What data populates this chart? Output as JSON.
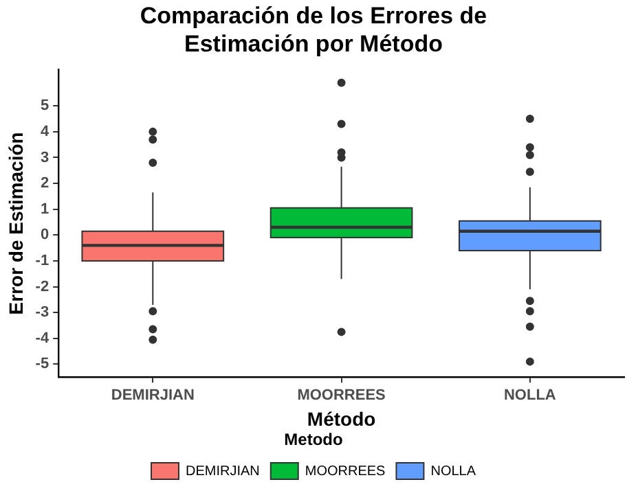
{
  "chart_data": {
    "type": "box",
    "title": "Comparación de los Errores de Estimación por Método",
    "xlabel": "Método",
    "ylabel": "Error de Estimación",
    "legend_title": "Metodo",
    "legend": "bottom",
    "grid": false,
    "categories": [
      "DEMIRJIAN",
      "MOORREES",
      "NOLLA"
    ],
    "series": [
      {
        "name": "DEMIRJIAN",
        "color": "#f8766d",
        "boxes": [
          {
            "low": -2.7,
            "q1": -1.0,
            "median": -0.4,
            "q3": 0.15,
            "high": 1.65,
            "outliers": [
              4.0,
              3.7,
              2.8,
              -2.95,
              -3.65,
              -4.05
            ]
          },
          null,
          null
        ]
      },
      {
        "name": "MOORREES",
        "color": "#00ba38",
        "boxes": [
          null,
          {
            "low": -1.7,
            "q1": -0.1,
            "median": 0.3,
            "q3": 1.05,
            "high": 2.65,
            "outliers": [
              5.9,
              4.3,
              3.2,
              3.0,
              -3.75
            ]
          },
          null
        ]
      },
      {
        "name": "NOLLA",
        "color": "#619cff",
        "boxes": [
          null,
          null,
          {
            "low": -2.1,
            "q1": -0.6,
            "median": 0.15,
            "q3": 0.55,
            "high": 1.85,
            "outliers": [
              4.5,
              3.4,
              3.1,
              2.45,
              -2.55,
              -2.95,
              -3.55,
              -4.9
            ]
          }
        ]
      }
    ],
    "ylim": [
      -5.5,
      6.4
    ],
    "yticks": [
      -5,
      -4,
      -3,
      -2,
      -1,
      0,
      1,
      2,
      3,
      4,
      5
    ]
  }
}
